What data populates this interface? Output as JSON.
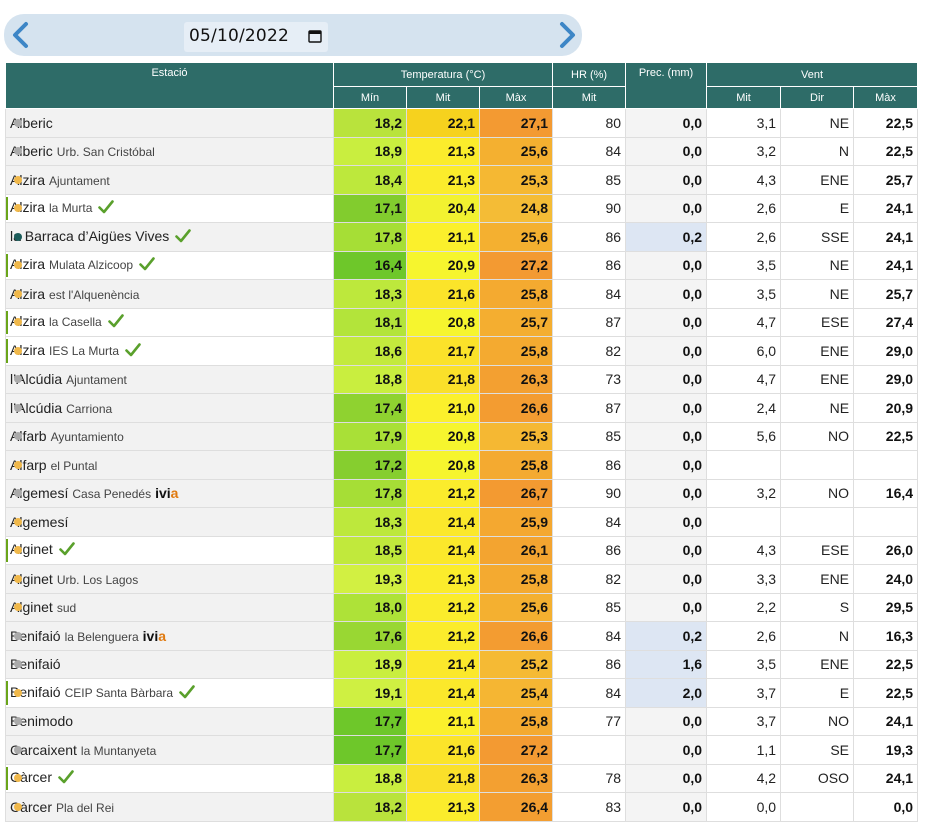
{
  "date": "05/10/2022",
  "headers": {
    "station": "Estació",
    "temperature": "Temperatura (°C)",
    "hr": "HR (%)",
    "prec": "Prec. (mm)",
    "wind": "Vent",
    "t_min": "Mín",
    "t_mid": "Mit",
    "t_max": "Màx",
    "hr_mid": "Mit",
    "w_mid": "Mit",
    "w_dir": "Dir",
    "w_max": "Màx"
  },
  "colors": {
    "header_bg": "#2e6c68",
    "dot_gray": "#aaaaaa",
    "dot_yellow": "#f0b84a",
    "dot_teal": "#1b5c5a",
    "check_green": "#5aa02c",
    "ivia_orange": "#e07a10",
    "rain_highlight": "#dde6f3"
  },
  "rows": [
    {
      "name": "Alberic",
      "sub": "",
      "dot": "gray",
      "check": false,
      "hl": false,
      "min": "18,2",
      "mid": "22,1",
      "max": "27,1",
      "hr": "80",
      "prec": "0,0",
      "wmid": "3,1",
      "wdir": "NE",
      "wmax": "22,5",
      "cmin": "#b9e33c",
      "cmid": "#f6d21e",
      "cmax": "#f39a32"
    },
    {
      "name": "Alberic",
      "sub": "Urb. San Cristóbal",
      "dot": "gray",
      "check": false,
      "hl": false,
      "min": "18,9",
      "mid": "21,3",
      "max": "25,6",
      "hr": "84",
      "prec": "0,0",
      "wmid": "3,2",
      "wdir": "N",
      "wmax": "22,5",
      "cmin": "#c9ee3f",
      "cmid": "#fbec2c",
      "cmax": "#f4b030"
    },
    {
      "name": "Alzira",
      "sub": "Ajuntament",
      "dot": "yellow",
      "check": false,
      "hl": false,
      "min": "18,4",
      "mid": "21,3",
      "max": "25,3",
      "hr": "85",
      "prec": "0,0",
      "wmid": "4,3",
      "wdir": "ENE",
      "wmax": "25,7",
      "cmin": "#bde83c",
      "cmid": "#fbec2c",
      "cmax": "#f5b833"
    },
    {
      "name": "Alzira",
      "sub": "la Murta",
      "dot": "yellow",
      "check": true,
      "hl": true,
      "min": "17,1",
      "mid": "20,4",
      "max": "24,8",
      "hr": "90",
      "prec": "0,0",
      "wmid": "2,6",
      "wdir": "E",
      "wmax": "24,1",
      "cmin": "#82cc2e",
      "cmid": "#f2f230",
      "cmax": "#f4bc36"
    },
    {
      "name": "la Barraca d’Aigües Vives",
      "sub": "",
      "dot": "teal",
      "check": true,
      "hl": false,
      "min": "17,8",
      "mid": "21,1",
      "max": "25,6",
      "hr": "86",
      "prec": "0,2",
      "wmid": "2,6",
      "wdir": "SSE",
      "wmax": "24,1",
      "cmin": "#a6de36",
      "cmid": "#fbf02c",
      "cmax": "#f4b030"
    },
    {
      "name": "Alzira",
      "sub": "Mulata Alzicoop",
      "dot": "yellow",
      "check": true,
      "hl": true,
      "min": "16,4",
      "mid": "20,9",
      "max": "27,2",
      "hr": "86",
      "prec": "0,0",
      "wmid": "3,5",
      "wdir": "NE",
      "wmax": "24,1",
      "cmin": "#6ec72a",
      "cmid": "#f6f52e",
      "cmax": "#f39a32"
    },
    {
      "name": "Alzira",
      "sub": "est l'Alquenència",
      "dot": "yellow",
      "check": false,
      "hl": false,
      "min": "18,3",
      "mid": "21,6",
      "max": "25,8",
      "hr": "84",
      "prec": "0,0",
      "wmid": "3,5",
      "wdir": "NE",
      "wmax": "25,7",
      "cmin": "#bde83c",
      "cmid": "#fbe42a",
      "cmax": "#f4aa30"
    },
    {
      "name": "Alzira",
      "sub": "la Casella",
      "dot": "yellow",
      "check": true,
      "hl": true,
      "min": "18,1",
      "mid": "20,8",
      "max": "25,7",
      "hr": "87",
      "prec": "0,0",
      "wmid": "4,7",
      "wdir": "ESE",
      "wmax": "27,4",
      "cmin": "#b3e43a",
      "cmid": "#f6f52e",
      "cmax": "#f4ae30"
    },
    {
      "name": "Alzira",
      "sub": "IES La Murta",
      "dot": "yellow",
      "check": true,
      "hl": true,
      "min": "18,6",
      "mid": "21,7",
      "max": "25,8",
      "hr": "82",
      "prec": "0,0",
      "wmid": "6,0",
      "wdir": "ENE",
      "wmax": "29,0",
      "cmin": "#c3ea3d",
      "cmid": "#fbe22a",
      "cmax": "#f4aa30"
    },
    {
      "name": "l’Alcúdia",
      "sub": "Ajuntament",
      "dot": "gray",
      "check": false,
      "hl": false,
      "min": "18,8",
      "mid": "21,8",
      "max": "26,3",
      "hr": "73",
      "prec": "0,0",
      "wmid": "4,7",
      "wdir": "ENE",
      "wmax": "29,0",
      "cmin": "#c9ee3f",
      "cmid": "#fae02a",
      "cmax": "#f3a031"
    },
    {
      "name": "l’Alcúdia",
      "sub": "Carriona",
      "dot": "gray",
      "check": false,
      "hl": false,
      "min": "17,4",
      "mid": "21,0",
      "max": "26,6",
      "hr": "87",
      "prec": "0,0",
      "wmid": "2,4",
      "wdir": "NE",
      "wmax": "20,9",
      "cmin": "#8fd230",
      "cmid": "#fbf02c",
      "cmax": "#f39c31"
    },
    {
      "name": "Alfarb",
      "sub": "Ayuntamiento",
      "dot": "gray",
      "check": false,
      "hl": false,
      "min": "17,9",
      "mid": "20,8",
      "max": "25,3",
      "hr": "85",
      "prec": "0,0",
      "wmid": "5,6",
      "wdir": "NO",
      "wmax": "22,5",
      "cmin": "#a9e037",
      "cmid": "#f6f52e",
      "cmax": "#f5b833"
    },
    {
      "name": "Alfarp",
      "sub": "el Puntal",
      "dot": "yellow",
      "check": false,
      "hl": false,
      "min": "17,2",
      "mid": "20,8",
      "max": "25,8",
      "hr": "86",
      "prec": "0,0",
      "wmid": "",
      "wdir": "",
      "wmax": "",
      "cmin": "#86ce2f",
      "cmid": "#f6f52e",
      "cmax": "#f4aa30"
    },
    {
      "name": "Algemesí",
      "sub": "Casa Penedés",
      "ivia": true,
      "dot": "gray",
      "check": false,
      "hl": false,
      "min": "17,8",
      "mid": "21,2",
      "max": "26,7",
      "hr": "90",
      "prec": "0,0",
      "wmid": "3,2",
      "wdir": "NO",
      "wmax": "16,4",
      "cmin": "#a6de36",
      "cmid": "#fbec2c",
      "cmax": "#f39a31"
    },
    {
      "name": "Algemesí",
      "sub": "",
      "dot": "yellow",
      "check": false,
      "hl": false,
      "min": "18,3",
      "mid": "21,4",
      "max": "25,9",
      "hr": "84",
      "prec": "0,0",
      "wmid": "",
      "wdir": "",
      "wmax": "",
      "cmin": "#bde83c",
      "cmid": "#fbe82b",
      "cmax": "#f4a830"
    },
    {
      "name": "Alginet",
      "sub": "",
      "dot": "yellow",
      "check": true,
      "hl": true,
      "min": "18,5",
      "mid": "21,4",
      "max": "26,1",
      "hr": "86",
      "prec": "0,0",
      "wmid": "4,3",
      "wdir": "ESE",
      "wmax": "26,0",
      "cmin": "#c1e93c",
      "cmid": "#fbe82b",
      "cmax": "#f3a430"
    },
    {
      "name": "Alginet",
      "sub": "Urb. Los Lagos",
      "dot": "yellow",
      "check": false,
      "hl": false,
      "min": "19,3",
      "mid": "21,3",
      "max": "25,8",
      "hr": "82",
      "prec": "0,0",
      "wmid": "3,3",
      "wdir": "ENE",
      "wmax": "24,0",
      "cmin": "#d2f042",
      "cmid": "#fbec2c",
      "cmax": "#f4aa30"
    },
    {
      "name": "Alginet",
      "sub": "sud",
      "dot": "yellow",
      "check": false,
      "hl": false,
      "min": "18,0",
      "mid": "21,2",
      "max": "25,6",
      "hr": "85",
      "prec": "0,0",
      "wmid": "2,2",
      "wdir": "S",
      "wmax": "29,5",
      "cmin": "#aee238",
      "cmid": "#fbec2c",
      "cmax": "#f4b030"
    },
    {
      "name": "Benifaió",
      "sub": "la Belenguera",
      "ivia": true,
      "dot": "gray",
      "check": false,
      "hl": false,
      "min": "17,6",
      "mid": "21,2",
      "max": "26,6",
      "hr": "84",
      "prec": "0,2",
      "wmid": "2,6",
      "wdir": "N",
      "wmax": "16,3",
      "cmin": "#99d733",
      "cmid": "#fbec2c",
      "cmax": "#f39c31"
    },
    {
      "name": "Benifaió",
      "sub": "",
      "dot": "gray",
      "check": false,
      "hl": false,
      "min": "18,9",
      "mid": "21,4",
      "max": "25,2",
      "hr": "86",
      "prec": "1,6",
      "wmid": "3,5",
      "wdir": "ENE",
      "wmax": "22,5",
      "cmin": "#c9ee3f",
      "cmid": "#fbe82b",
      "cmax": "#f5ba34"
    },
    {
      "name": "Benifaió",
      "sub": "CEIP Santa Bàrbara",
      "dot": "yellow",
      "check": true,
      "hl": true,
      "min": "19,1",
      "mid": "21,4",
      "max": "25,4",
      "hr": "84",
      "prec": "2,0",
      "wmid": "3,7",
      "wdir": "E",
      "wmax": "22,5",
      "cmin": "#cff042",
      "cmid": "#fbe82b",
      "cmax": "#f5b633"
    },
    {
      "name": "Benimodo",
      "sub": "",
      "dot": "gray",
      "check": false,
      "hl": false,
      "min": "17,7",
      "mid": "21,1",
      "max": "25,8",
      "hr": "77",
      "prec": "0,0",
      "wmid": "3,7",
      "wdir": "NO",
      "wmax": "24,1",
      "cmin": "#6ec72a",
      "cmid": "#fbf02c",
      "cmax": "#f4aa30"
    },
    {
      "name": "Carcaixent",
      "sub": "la Muntanyeta",
      "dot": "gray",
      "check": false,
      "hl": false,
      "min": "17,7",
      "mid": "21,6",
      "max": "27,2",
      "hr": "",
      "prec": "0,0",
      "wmid": "1,1",
      "wdir": "SE",
      "wmax": "19,3",
      "cmin": "#6ec72a",
      "cmid": "#fbe42a",
      "cmax": "#f39a32"
    },
    {
      "name": "Càrcer",
      "sub": "",
      "dot": "yellow",
      "check": true,
      "hl": true,
      "min": "18,8",
      "mid": "21,8",
      "max": "26,3",
      "hr": "78",
      "prec": "0,0",
      "wmid": "4,2",
      "wdir": "OSO",
      "wmax": "24,1",
      "cmin": "#c9ee3f",
      "cmid": "#fae02a",
      "cmax": "#f3a031"
    },
    {
      "name": "Càrcer",
      "sub": "Pla del Rei",
      "dot": "yellow",
      "check": false,
      "hl": false,
      "min": "18,2",
      "mid": "21,3",
      "max": "26,4",
      "hr": "83",
      "prec": "0,0",
      "wmid": "0,0",
      "wdir": "",
      "wmax": "0,0",
      "cmin": "#b9e33c",
      "cmid": "#fbec2c",
      "cmax": "#f39e31"
    }
  ]
}
